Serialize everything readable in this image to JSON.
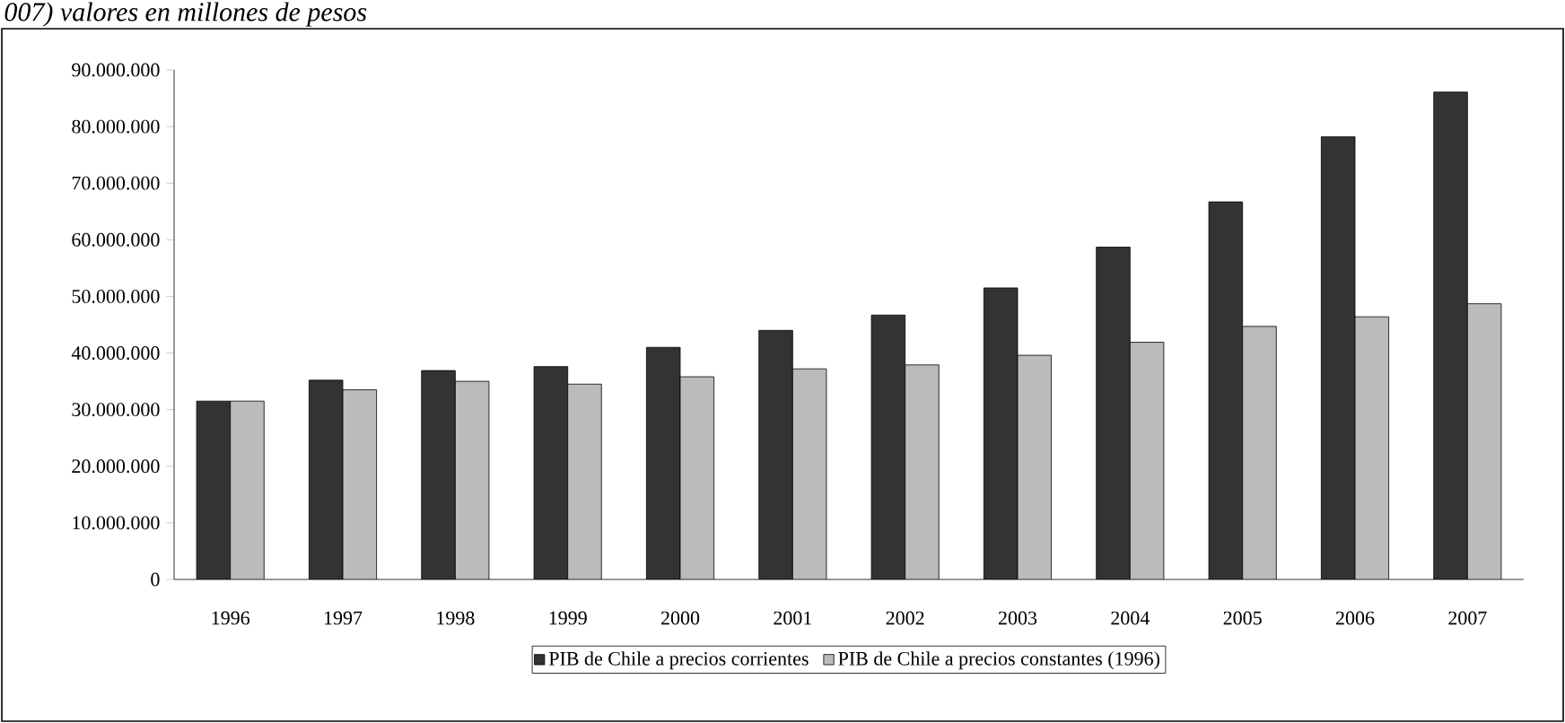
{
  "chart_data": {
    "type": "bar",
    "title": "007) valores en millones de pesos",
    "categories": [
      "1996",
      "1997",
      "1998",
      "1999",
      "2000",
      "2001",
      "2002",
      "2003",
      "2004",
      "2005",
      "2006",
      "2007"
    ],
    "series": [
      {
        "name": "PIB de Chile a precios corrientes",
        "color": "#333333",
        "values": [
          31500000,
          35200000,
          36900000,
          37600000,
          41000000,
          44000000,
          46700000,
          51500000,
          58700000,
          66700000,
          78200000,
          86100000
        ]
      },
      {
        "name": "PIB de Chile a precios constantes (1996)",
        "color": "#bbbbbb",
        "values": [
          31500000,
          33500000,
          35000000,
          34500000,
          35800000,
          37200000,
          37900000,
          39600000,
          41900000,
          44700000,
          46400000,
          48700000
        ]
      }
    ],
    "ylim": [
      0,
      90000000
    ],
    "yticks": [
      0,
      {
        "value": 10000000,
        "label": "10.000.000"
      },
      {
        "value": 20000000,
        "label": "20.000.000"
      },
      {
        "value": 30000000,
        "label": "30.000.000"
      },
      {
        "value": 40000000,
        "label": "40.000.000"
      },
      {
        "value": 50000000,
        "label": "50.000.000"
      },
      {
        "value": 60000000,
        "label": "60.000.000"
      },
      {
        "value": 70000000,
        "label": "70.000.000"
      },
      {
        "value": 80000000,
        "label": "80.000.000"
      },
      {
        "value": 90000000,
        "label": "90.000.000"
      }
    ],
    "legend": "bottom"
  }
}
